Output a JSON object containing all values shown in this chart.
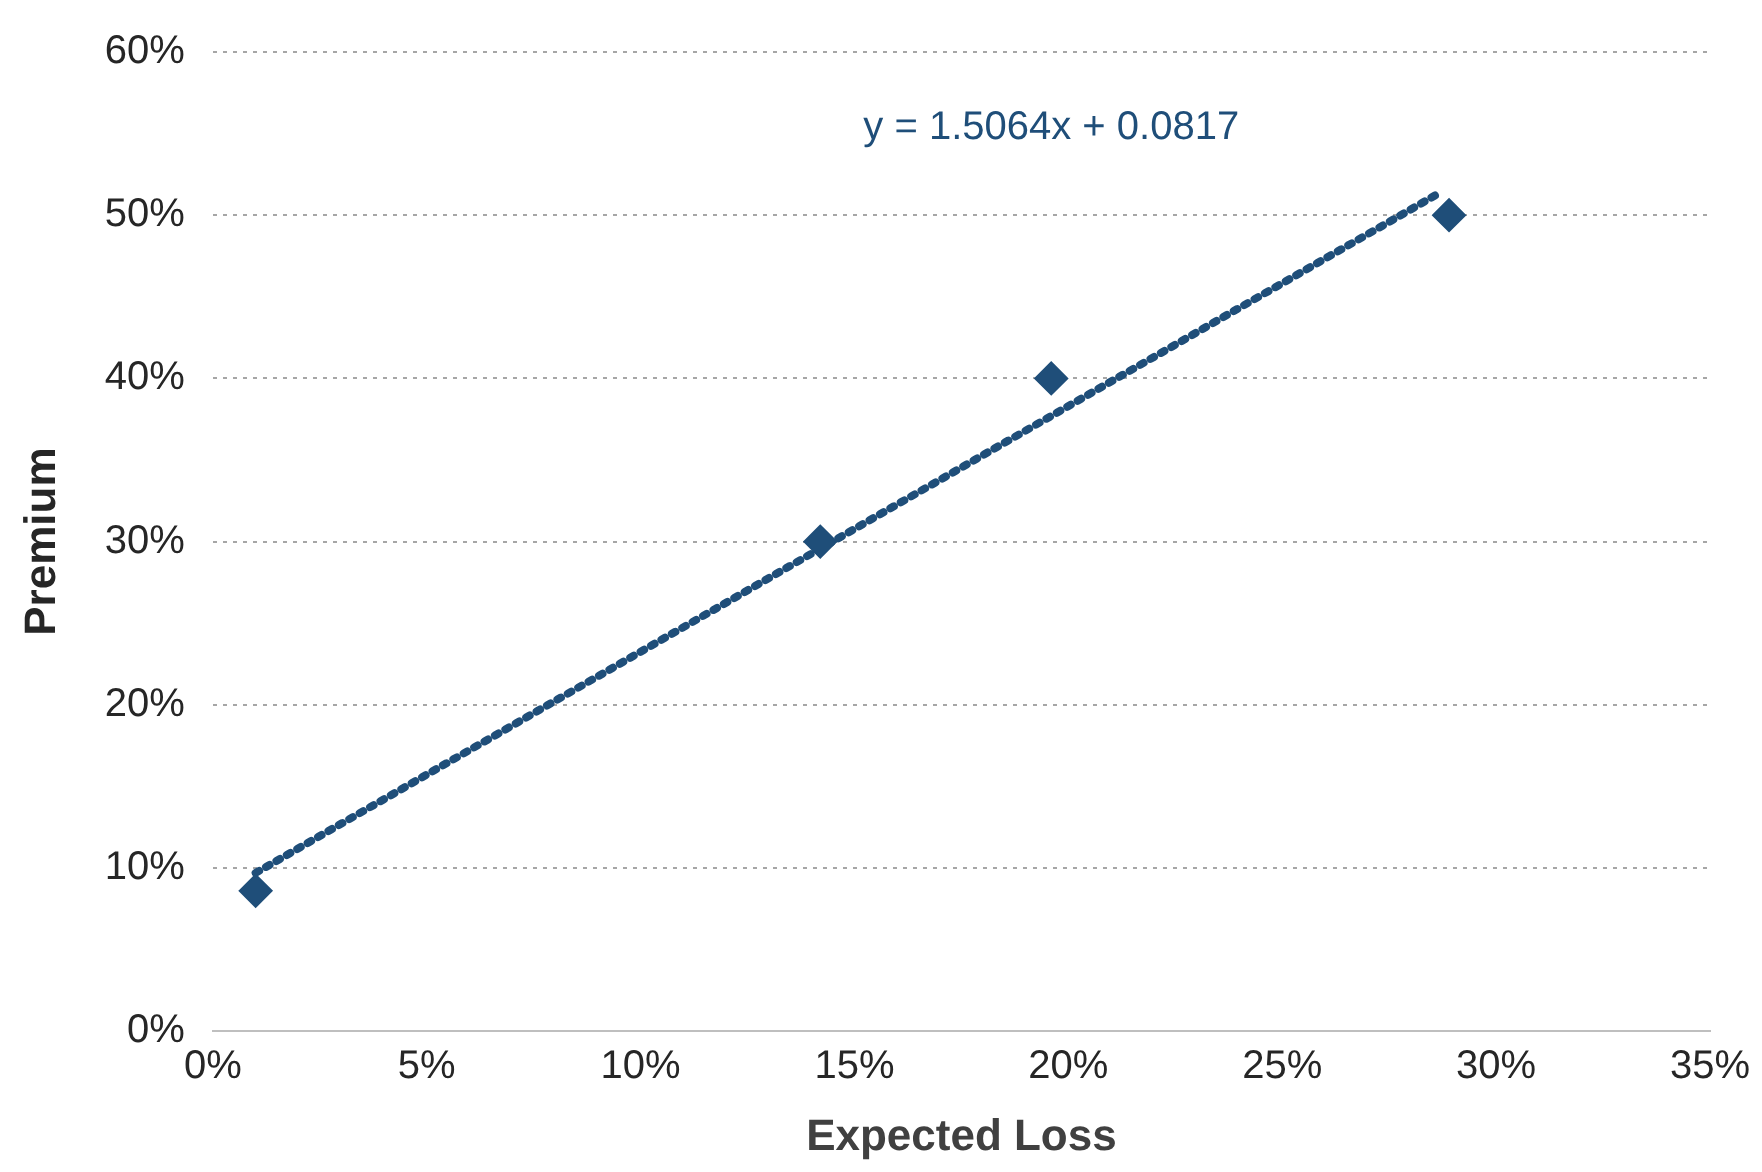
{
  "chart_data": {
    "type": "scatter",
    "xlabel": "Expected Loss",
    "ylabel": "Premium",
    "annotations": [
      "y = 1.5064x + 0.0817"
    ],
    "xlim": [
      0,
      35
    ],
    "xticks": [
      {
        "value": 0,
        "label": "0%"
      },
      {
        "value": 5,
        "label": "5%"
      },
      {
        "value": 10,
        "label": "10%"
      },
      {
        "value": 15,
        "label": "15%"
      },
      {
        "value": 20,
        "label": "20%"
      },
      {
        "value": 25,
        "label": "25%"
      },
      {
        "value": 30,
        "label": "30%"
      },
      {
        "value": 35,
        "label": "35%"
      }
    ],
    "ylim": [
      0,
      60
    ],
    "yticks": [
      {
        "value": 0,
        "label": "0%"
      },
      {
        "value": 10,
        "label": "10%"
      },
      {
        "value": 20,
        "label": "20%"
      },
      {
        "value": 30,
        "label": "30%"
      },
      {
        "value": 40,
        "label": "40%"
      },
      {
        "value": 50,
        "label": "50%"
      },
      {
        "value": 60,
        "label": "60%"
      }
    ],
    "grid": "y",
    "legend": false,
    "marker": "diamond",
    "series": [
      {
        "color": "#1f4e79",
        "x": [
          1,
          14.2,
          19.6,
          28.9
        ],
        "values": [
          8.6,
          30,
          40,
          50
        ]
      },
      {
        "type": "line",
        "line_style": "dotted",
        "marker": "none",
        "color": "#1f4e79",
        "x": [
          1,
          28.7
        ],
        "values": [
          9.7,
          51.4
        ]
      }
    ]
  }
}
